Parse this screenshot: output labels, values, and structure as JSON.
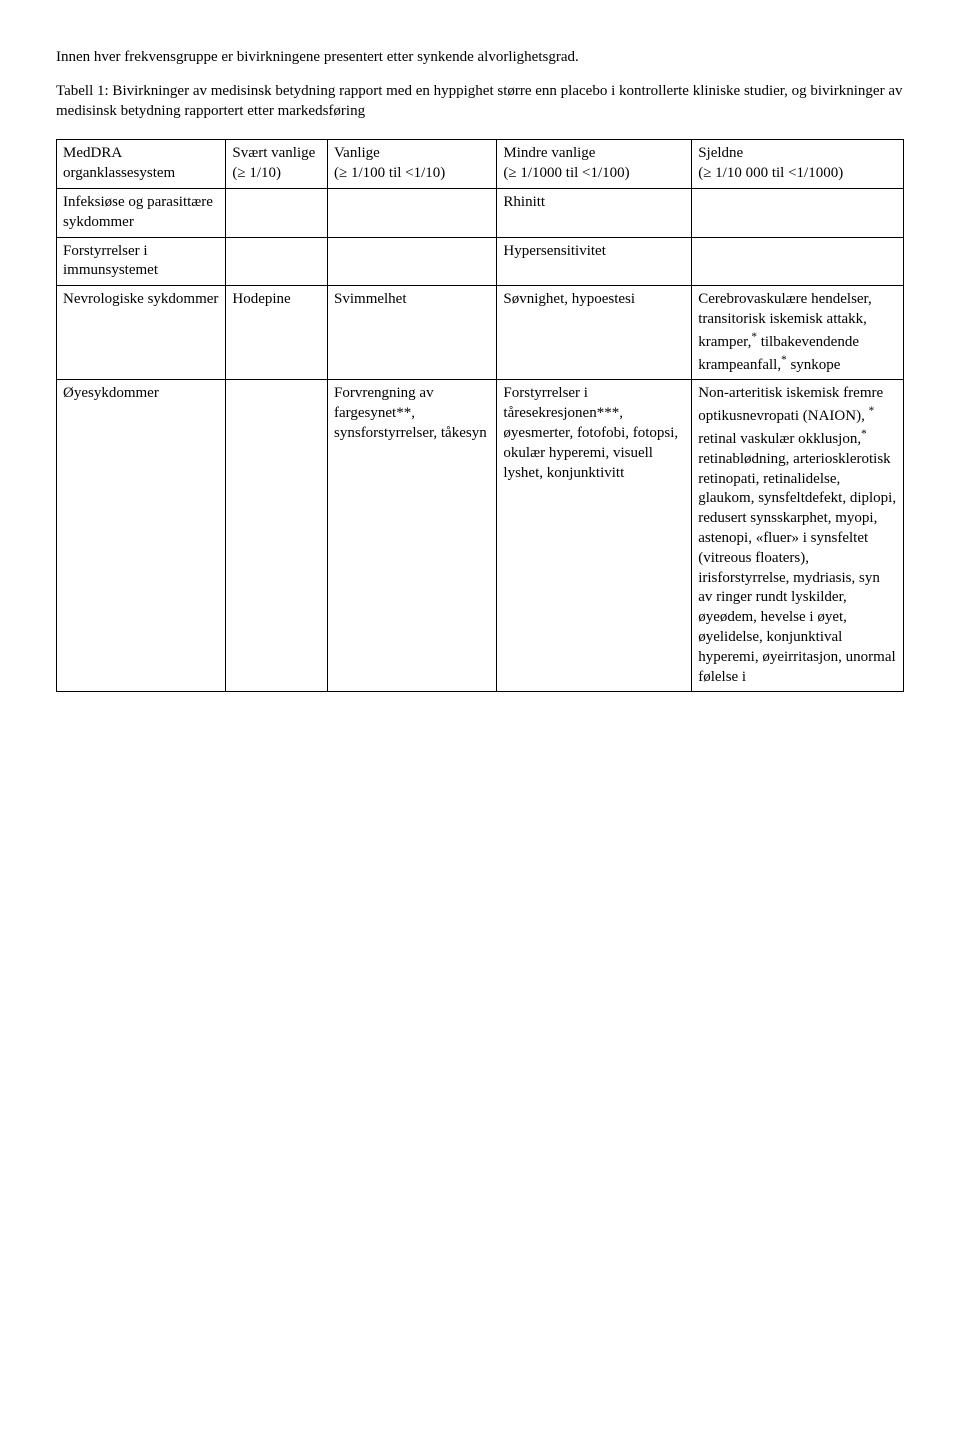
{
  "intro": {
    "line1": "Innen hver frekvensgruppe er bivirkningene presentert etter synkende alvorlighetsgrad.",
    "line2": "Tabell 1: Bivirkninger av medisinsk betydning rapport med en hyppighet større enn placebo i kontrollerte kliniske studier, og bivirkninger av medisinsk betydning rapportert etter markedsføring"
  },
  "headers": {
    "c1": "MedDRA organklassesystem",
    "c2a": "Svært vanlige",
    "c2b": "(≥ 1/10)",
    "c3a": "Vanlige",
    "c3b": "(≥ 1/100 til <1/10)",
    "c4a": "Mindre vanlige",
    "c4b": "(≥ 1/1000 til <1/100)",
    "c5a": "Sjeldne",
    "c5b": "(≥ 1/10 000 til <1/1000)"
  },
  "rows": {
    "r1": {
      "c1": "Infeksiøse og parasittære sykdommer",
      "c4": "Rhinitt"
    },
    "r2": {
      "c1": "Forstyrrelser i immunsystemet",
      "c4": "Hypersensitivitet"
    },
    "r3": {
      "c1": "Nevrologiske sykdommer",
      "c2": "Hodepine",
      "c3": "Svimmelhet",
      "c4": "Søvnighet, hypoestesi",
      "c5a": "Cerebrovaskulære hendelser, transitorisk iskemisk attakk, kramper,",
      "c5b": " tilbakevendende krampeanfall,",
      "c5c": " synkope"
    },
    "r4": {
      "c1": "Øyesykdommer",
      "c3": "Forvrengning av fargesynet**, synsforstyrrelser, tåkesyn",
      "c4": "Forstyrrelser i tåresekresjonen***, øyesmerter, fotofobi, fotopsi, okulær hyperemi, visuell lyshet, konjunktivitt",
      "c5a": "Non-arteritisk iskemisk fremre optikusnevropati (NAION), ",
      "c5b": " retinal vaskulær okklusjon,",
      "c5c": " retinablødning, arteriosklerotisk retinopati, retinalidelse, glaukom, synsfeltdefekt, diplopi, redusert synsskarphet, myopi, astenopi, «fluer» i synsfeltet (vitreous floaters), irisforstyrrelse, mydriasis, syn av ringer rundt lyskilder, øyeødem, hevelse i øyet, øyelidelse, konjunktival hyperemi, øyeirritasjon, unormal følelse i"
    }
  }
}
